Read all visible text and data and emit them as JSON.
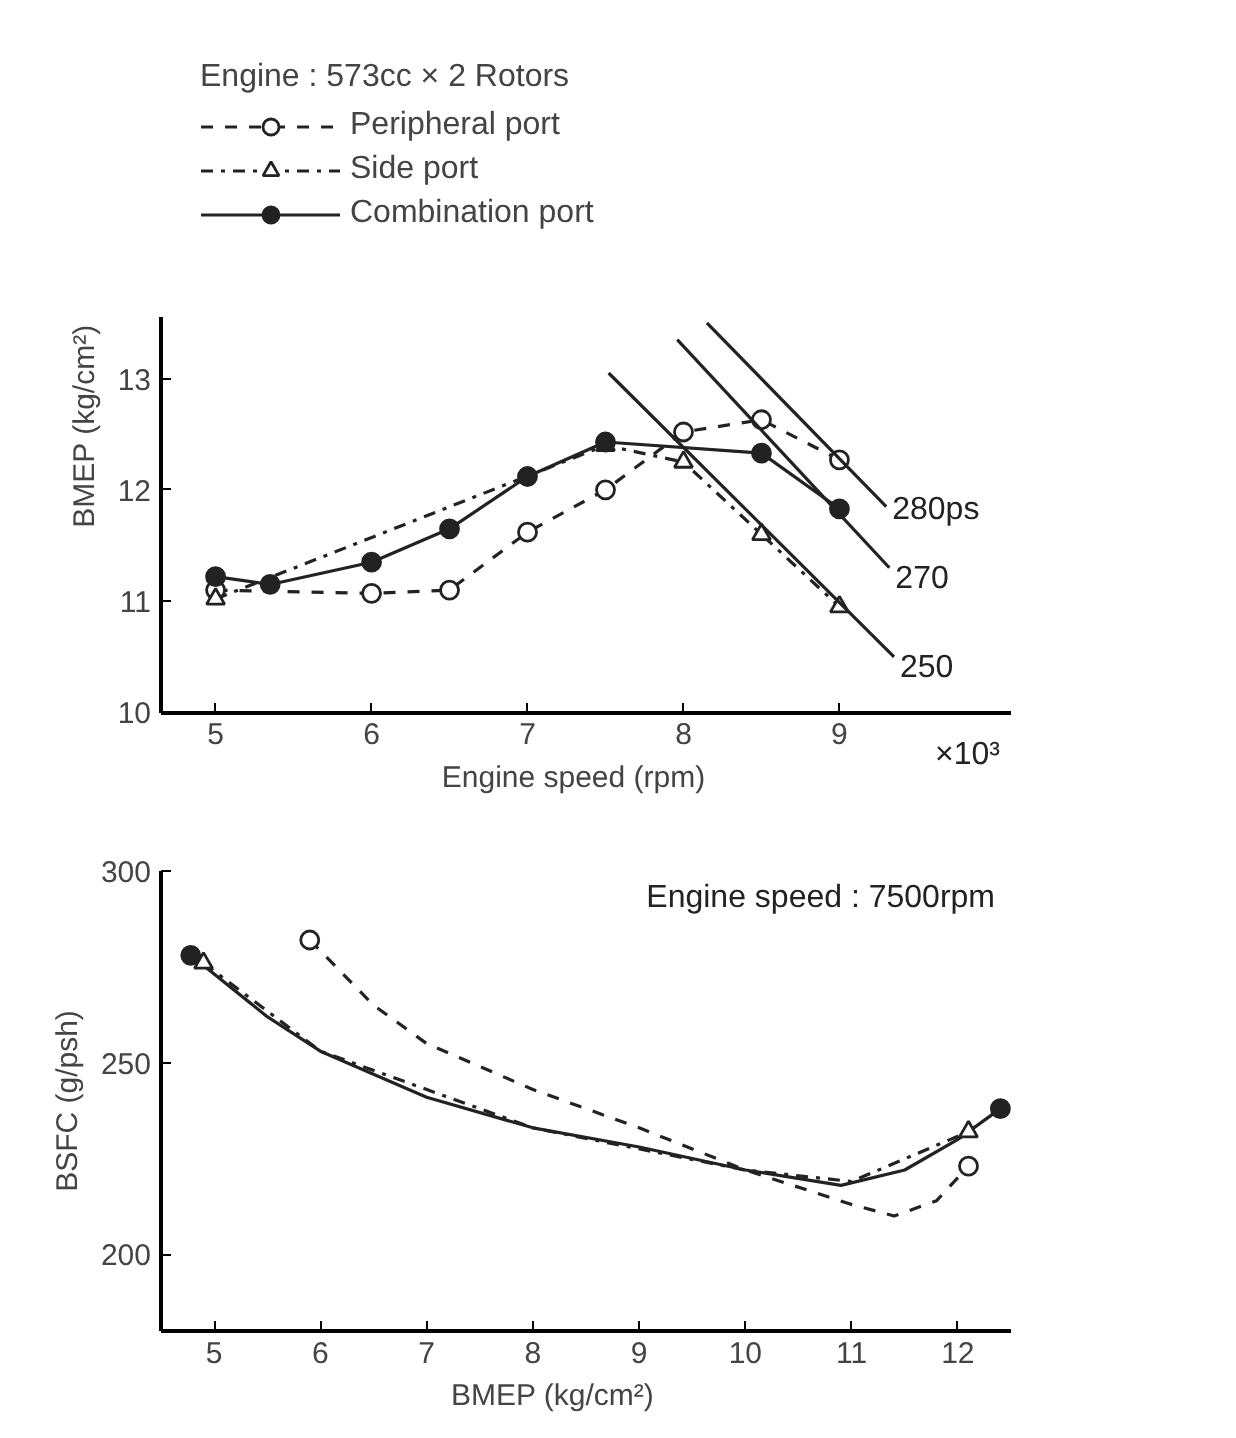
{
  "chart_data": [
    {
      "type": "line",
      "legend_title": "Engine : 573cc × 2 Rotors",
      "xlabel": "Engine speed    (rpm)",
      "ylabel": "BMEP (kg/cm²)",
      "annotations": [
        "×10³"
      ],
      "xlim": [
        4.65,
        10.1
      ],
      "ylim": [
        10,
        13.55
      ],
      "xticks": [
        5,
        6,
        7,
        8,
        9
      ],
      "yticks": [
        10,
        11,
        12,
        13
      ],
      "grid": false,
      "legend": "top left",
      "series": [
        {
          "name": "Peripheral port",
          "color": "#222222",
          "line_style": "dashed",
          "marker": "circle",
          "x": [
            5.0,
            6.0,
            6.5,
            7.0,
            7.5,
            8.0,
            8.5,
            9.0
          ],
          "values": [
            11.1,
            11.07,
            11.1,
            11.62,
            12.0,
            12.52,
            12.63,
            12.27
          ]
        },
        {
          "name": "Side port",
          "color": "#222222",
          "line_style": "dashdot",
          "marker": "triangle",
          "x": [
            5.0,
            7.5,
            8.0,
            8.5,
            9.0
          ],
          "values": [
            11.02,
            12.4,
            12.25,
            11.6,
            10.95
          ]
        },
        {
          "name": "Combination port",
          "color": "#222222",
          "line_style": "solid",
          "marker": "circle",
          "x": [
            5.0,
            5.35,
            6.0,
            6.5,
            7.0,
            7.5,
            8.5,
            9.0
          ],
          "values": [
            11.22,
            11.15,
            11.35,
            11.65,
            12.12,
            12.43,
            12.33,
            11.83
          ]
        },
        {
          "name": "280ps",
          "color": "#222222",
          "line_style": "solid",
          "marker": "none",
          "x": [
            8.15,
            9.3
          ],
          "values": [
            13.5,
            11.85
          ]
        },
        {
          "name": "270",
          "color": "#222222",
          "line_style": "solid",
          "marker": "none",
          "x": [
            7.96,
            9.32
          ],
          "values": [
            13.35,
            11.3
          ]
        },
        {
          "name": "250",
          "color": "#222222",
          "line_style": "solid",
          "marker": "none",
          "x": [
            7.52,
            9.35
          ],
          "values": [
            13.05,
            10.5
          ]
        }
      ]
    },
    {
      "type": "line",
      "xlabel": "BMEP         (kg/cm²)",
      "ylabel": "BSFC (g/psh)",
      "annotations": [
        "Engine speed : 7500rpm"
      ],
      "xlim": [
        4.5,
        12.5
      ],
      "ylim": [
        180,
        300
      ],
      "xticks": [
        5,
        6,
        7,
        8,
        9,
        10,
        11,
        12
      ],
      "yticks": [
        200,
        250,
        300
      ],
      "grid": false,
      "legend": false,
      "series": [
        {
          "color": "#222222",
          "line_style": "dashed",
          "marker": "none",
          "x": [
            5.9,
            6.5,
            7.0,
            8.0,
            9.0,
            10.0,
            11.0,
            11.4,
            11.8,
            12.1
          ],
          "values": [
            282,
            265,
            255,
            243,
            233,
            222,
            213,
            210,
            214,
            223
          ]
        },
        {
          "color": "#222222",
          "line_style": "dashdot",
          "marker": "none",
          "x": [
            4.9,
            6.0,
            8.0,
            10.0,
            11.0,
            12.1
          ],
          "values": [
            276,
            253,
            233,
            222,
            219,
            232
          ]
        },
        {
          "color": "#222222",
          "line_style": "solid",
          "marker": "none",
          "x": [
            4.78,
            5.5,
            6.0,
            7.0,
            8.0,
            9.0,
            10.0,
            10.9,
            11.5,
            12.0,
            12.4
          ],
          "values": [
            278,
            262,
            253,
            241,
            233,
            228,
            222,
            218,
            222,
            230,
            238
          ]
        },
        {
          "type": "scatter",
          "color": "#222222",
          "marker": "circle",
          "line_style": "dashed",
          "x": [
            5.9,
            12.1
          ],
          "values": [
            282,
            223
          ]
        },
        {
          "type": "scatter",
          "color": "#222222",
          "marker": "triangle",
          "line_style": "dashdot",
          "x": [
            4.9,
            12.1
          ],
          "values": [
            276,
            232
          ]
        },
        {
          "type": "scatter",
          "color": "#222222",
          "marker": "circle",
          "line_style": "solid",
          "x": [
            4.78,
            12.4
          ],
          "values": [
            278,
            238
          ]
        }
      ]
    }
  ]
}
